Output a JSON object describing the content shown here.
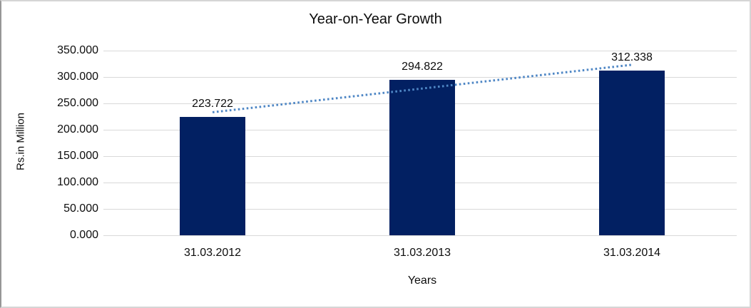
{
  "chart_data": {
    "type": "bar",
    "title": "Year-on-Year Growth",
    "xlabel": "Years",
    "ylabel": "Rs.in Million",
    "categories": [
      "31.03.2012",
      "31.03.2013",
      "31.03.2014"
    ],
    "values": [
      223.722,
      294.822,
      312.338
    ],
    "value_labels": [
      "223.722",
      "294.822",
      "312.338"
    ],
    "ylim": [
      0,
      350
    ],
    "ytick_step": 50,
    "ytick_labels": [
      "0.000",
      "50.000",
      "100.000",
      "150.000",
      "200.000",
      "250.000",
      "300.000",
      "350.000"
    ],
    "grid": true,
    "legend": "none",
    "bar_color": "#022062",
    "gridline_color": "#d9d9d9",
    "text_color": "#0d0d0d",
    "trendline": {
      "present": true,
      "style": "dotted",
      "color": "#4f87c5"
    }
  }
}
